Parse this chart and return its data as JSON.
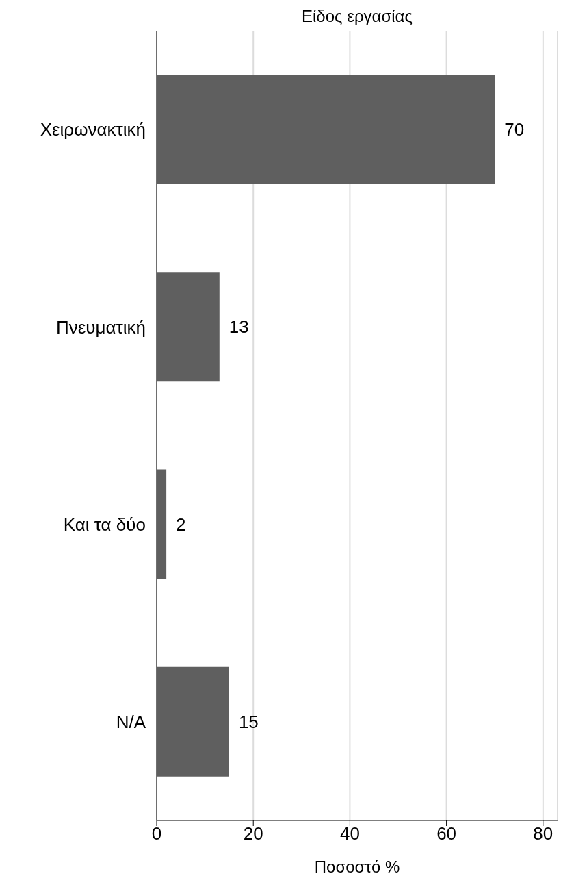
{
  "chart_data": {
    "type": "bar",
    "orientation": "horizontal",
    "title": "Είδος εργασίας",
    "xlabel": "Ποσοστό %",
    "categories": [
      "Χειρωνακτική",
      "Πνευματική",
      "Και τα δύο",
      "N/A"
    ],
    "values": [
      70,
      13,
      2,
      15
    ],
    "color": "#5f5f5f",
    "xlim": [
      0,
      83
    ],
    "xticks": [
      0,
      20,
      40,
      60,
      80
    ],
    "grid": "x",
    "data_labels": true
  }
}
